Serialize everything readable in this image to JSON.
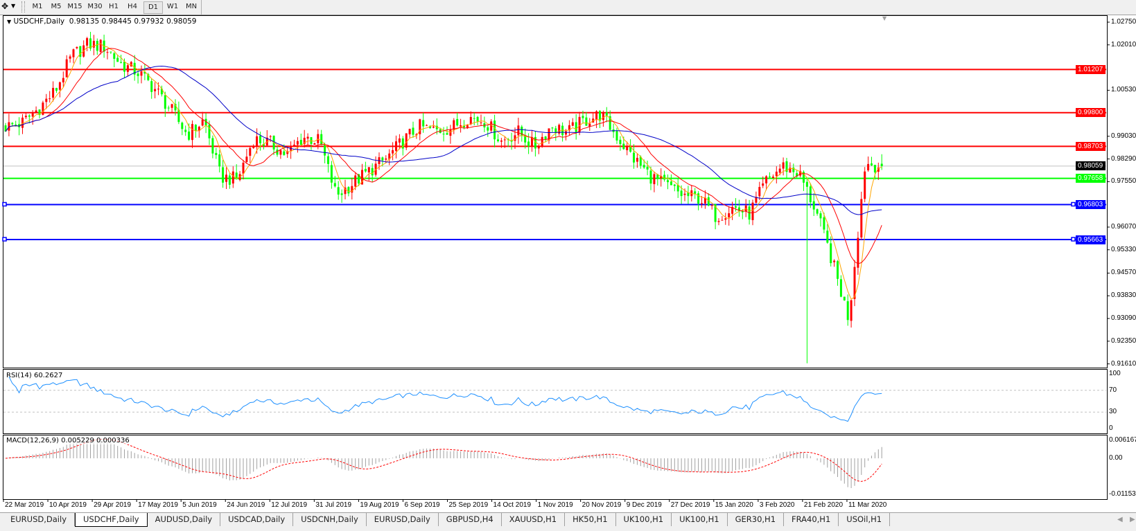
{
  "toolbar": {
    "timeframes": [
      "M1",
      "M5",
      "M15",
      "M30",
      "H1",
      "H4",
      "D1",
      "W1",
      "MN"
    ],
    "active_timeframe": "D1"
  },
  "chart_data": {
    "type": "candlestick",
    "symbol_label": "USDCHF,Daily",
    "ohlc_readout": "0.98135 0.98445 0.97932 0.98059",
    "last_bar": {
      "open": 0.98135,
      "high": 0.98445,
      "low": 0.97932,
      "close": 0.98059
    },
    "bull_color": "#ff0000",
    "bear_color": "#00ff00",
    "weekly_closes": [
      0.99344,
      0.99462,
      0.99935,
      1.00503,
      1.01638,
      1.0204,
      1.01946,
      1.01378,
      1.01118,
      1.00598,
      0.99888,
      0.99084,
      0.99557,
      0.97712,
      0.97617,
      0.98942,
      0.988,
      0.98422,
      0.99013,
      0.98871,
      0.97097,
      0.97499,
      0.97901,
      0.9828,
      0.98847,
      0.99344,
      0.99202,
      0.9932,
      0.99652,
      0.99533,
      0.98871,
      0.99179,
      0.98682,
      0.99368,
      0.99155,
      0.99533,
      0.99746,
      0.99013,
      0.98303,
      0.97736,
      0.97405,
      0.97097,
      0.97026,
      0.96411,
      0.96719,
      0.96506,
      0.97546,
      0.98067,
      0.9783,
      0.96624,
      0.94969,
      0.93076,
      0.98161,
      0.98059
    ],
    "ylim": [
      0.9161,
      1.0275
    ],
    "y_ticks": [
      "1.02750",
      "1.02010",
      "1.00530",
      "0.99030",
      "0.98290",
      "0.97550",
      "0.96070",
      "0.95330",
      "0.94570",
      "0.93830",
      "0.93090",
      "0.92350",
      "0.91610"
    ],
    "x_labels": [
      "22 Mar 2019",
      "10 Apr 2019",
      "29 Apr 2019",
      "17 May 2019",
      "5 Jun 2019",
      "24 Jun 2019",
      "12 Jul 2019",
      "31 Jul 2019",
      "19 Aug 2019",
      "6 Sep 2019",
      "25 Sep 2019",
      "14 Oct 2019",
      "1 Nov 2019",
      "20 Nov 2019",
      "9 Dec 2019",
      "27 Dec 2019",
      "15 Jan 2020",
      "3 Feb 2020",
      "21 Feb 2020",
      "11 Mar 2020"
    ],
    "moving_averages": [
      {
        "period": 5,
        "color": "#ffa500"
      },
      {
        "period": 13,
        "color": "#ff0000"
      },
      {
        "period": 34,
        "color": "#0000c8"
      }
    ],
    "levels": [
      {
        "price": "1.01207",
        "color": "#ff0000"
      },
      {
        "price": "0.99800",
        "color": "#ff0000"
      },
      {
        "price": "0.98703",
        "color": "#ff0000"
      },
      {
        "price": "0.98059",
        "color": "#000000",
        "line_color": "#c0c0c0"
      },
      {
        "price": "0.97658",
        "color": "#00ff00"
      },
      {
        "price": "0.96803",
        "color": "#0000ff"
      },
      {
        "price": "0.95663",
        "color": "#0000ff"
      }
    ],
    "rsi": {
      "label": "RSI(14) 60.2627",
      "period": 14,
      "color": "#1e90ff",
      "ticks": [
        "100",
        "70",
        "30",
        "0"
      ]
    },
    "macd": {
      "label": "MACD(12,26,9) 0.005229 0.000336",
      "ticks": [
        "0.006167",
        "0.00",
        "-0.01153"
      ],
      "hist_color": "#a0a0a0",
      "signal_color": "#ff0000"
    }
  },
  "tabs": [
    "EURUSD,Daily",
    "USDCHF,Daily",
    "AUDUSD,Daily",
    "USDCAD,Daily",
    "USDCNH,Daily",
    "EURUSD,Daily",
    "GBPUSD,H4",
    "XAUUSD,H1",
    "HK50,H1",
    "UK100,H1",
    "UK100,H1",
    "GER30,H1",
    "FRA40,H1",
    "USOil,H1"
  ],
  "active_tab": "USDCHF,Daily"
}
